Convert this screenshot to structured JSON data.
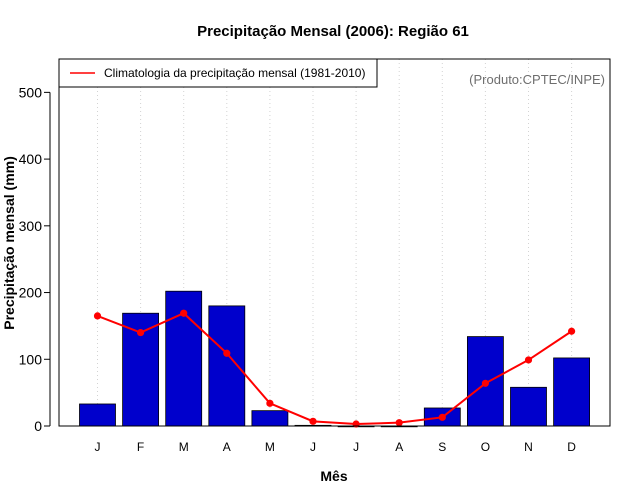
{
  "chart_data": {
    "type": "bar",
    "title": "Precipitação Mensal (2006): Região 61",
    "xlabel": "Mês",
    "ylabel": "Precipitação mensal (mm)",
    "categories": [
      "J",
      "F",
      "M",
      "A",
      "M",
      "J",
      "J",
      "A",
      "S",
      "O",
      "N",
      "D"
    ],
    "ylim": [
      0,
      550
    ],
    "yticks": [
      0,
      100,
      200,
      300,
      400,
      500
    ],
    "grid": "vertical-dotted",
    "series": [
      {
        "name": "Precipitação mensal 2006",
        "kind": "bar",
        "color": "#0000cc",
        "values": [
          33,
          169,
          202,
          180,
          23,
          1,
          0,
          0,
          27,
          134,
          58,
          102
        ]
      },
      {
        "name": "Climatologia da precipitação mensal (1981-2010)",
        "kind": "line",
        "color": "#ff0000",
        "values": [
          165,
          140,
          169,
          109,
          34,
          7,
          3,
          5,
          13,
          64,
          99,
          142
        ]
      }
    ],
    "legend": {
      "position": "top-left",
      "entries": [
        "Climatologia da precipitação mensal (1981-2010)"
      ]
    },
    "annotation": "(Produto:CPTEC/INPE)"
  }
}
